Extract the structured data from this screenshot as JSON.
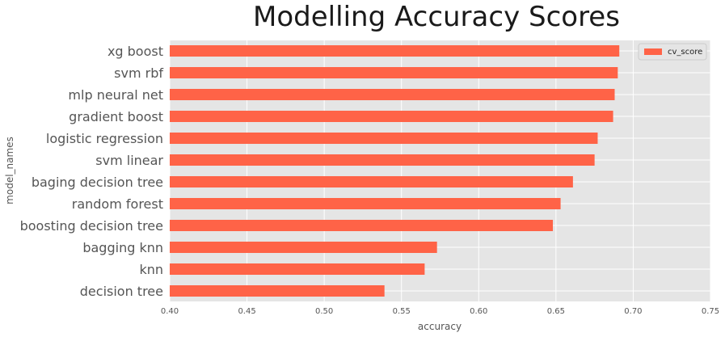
{
  "chart_data": {
    "type": "bar",
    "orientation": "horizontal",
    "title": "Modelling Accuracy Scores",
    "xlabel": "accuracy",
    "ylabel": "model_names",
    "xlim": [
      0.4,
      0.75
    ],
    "xticks": [
      "0.40",
      "0.45",
      "0.50",
      "0.55",
      "0.60",
      "0.65",
      "0.70",
      "0.75"
    ],
    "grid": true,
    "legend_position": "top-right",
    "colors": {
      "bar": "#ff6347",
      "plot_background": "#e5e5e5",
      "grid": "#ffffff"
    },
    "categories": [
      "xg boost",
      "svm rbf",
      "mlp neural net",
      "gradient boost",
      "logistic regression",
      "svm linear",
      "baging decision tree",
      "random forest",
      "boosting decision tree",
      "bagging knn",
      "knn",
      "decision tree"
    ],
    "series": [
      {
        "name": "cv_score",
        "values": [
          0.691,
          0.69,
          0.688,
          0.687,
          0.677,
          0.675,
          0.661,
          0.653,
          0.648,
          0.573,
          0.565,
          0.539
        ]
      }
    ]
  }
}
